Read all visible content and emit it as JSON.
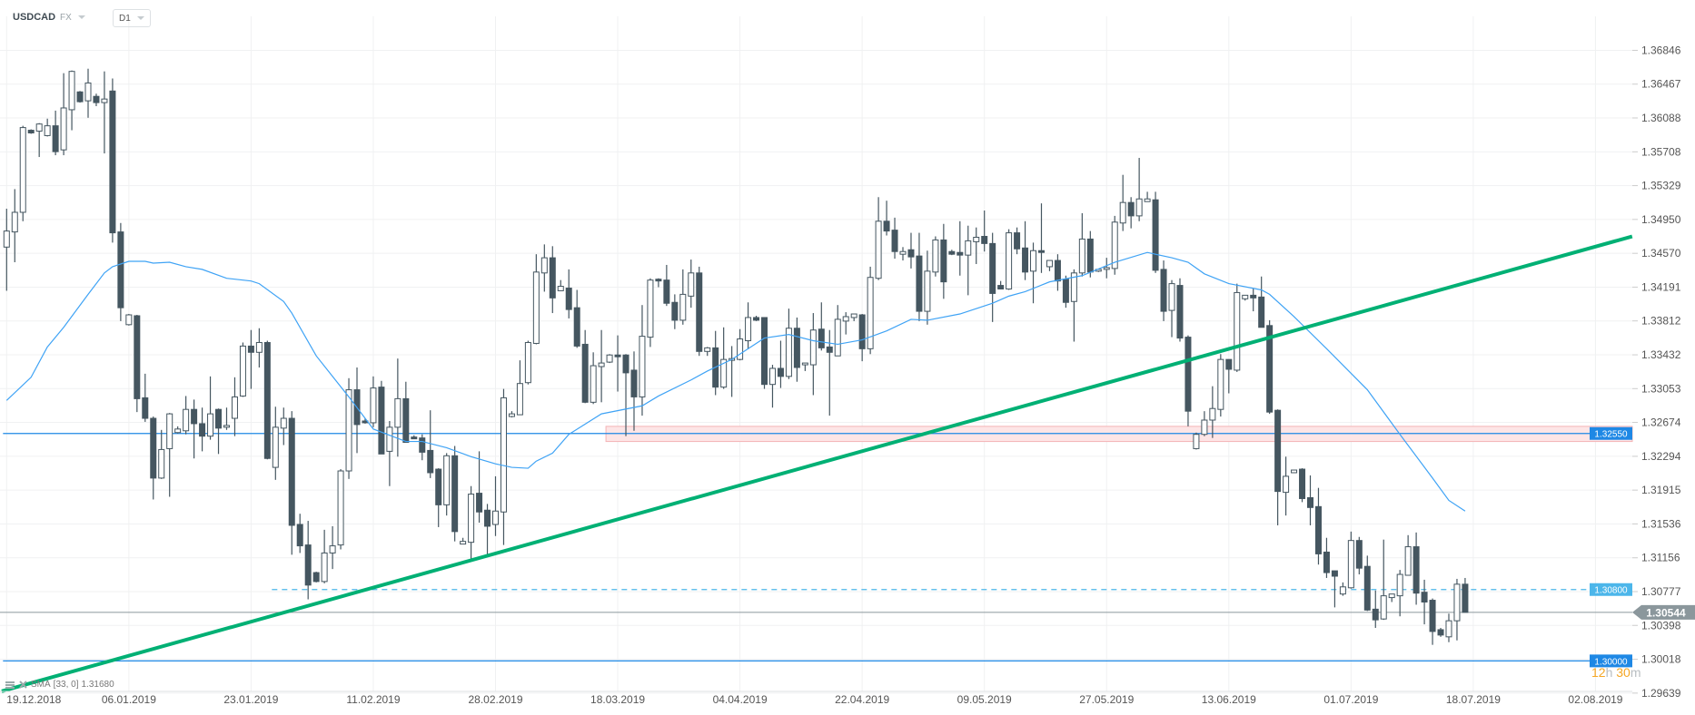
{
  "header": {
    "symbol": "USDCAD",
    "market": "FX",
    "timeframe": "D1"
  },
  "legend": {
    "indicator": "SMA",
    "params": "[33,  0]",
    "value": "1.31680"
  },
  "timer": {
    "hours": "12",
    "h": "h",
    "minutes": "30",
    "m": "m"
  },
  "colors": {
    "bull_fill": "#ffffff",
    "candle": "#455660",
    "sma": "#3fa3f5",
    "trendline": "#00b074",
    "level": "#1e88e5",
    "level_dashed": "#4cb6ea",
    "zone_fill": "#fde5e6",
    "zone_stroke": "#f4b4b6",
    "current": "#8b979c",
    "timer": "#f5a623"
  },
  "chart_data": {
    "type": "candlestick",
    "title": "",
    "ylim": [
      1.29639,
      1.36846
    ],
    "grid": true,
    "y_ticks": [
      "1.36846",
      "1.36467",
      "1.36088",
      "1.35708",
      "1.35329",
      "1.34950",
      "1.34570",
      "1.34191",
      "1.33812",
      "1.33432",
      "1.33053",
      "1.32674",
      "1.32294",
      "1.31915",
      "1.31536",
      "1.31156",
      "1.30777",
      "1.30398",
      "1.30018",
      "1.29639"
    ],
    "x_ticks": [
      "19.12.2018",
      "06.01.2019",
      "23.01.2019",
      "11.02.2019",
      "28.02.2019",
      "18.03.2019",
      "04.04.2019",
      "22.04.2019",
      "09.05.2019",
      "27.05.2019",
      "13.06.2019",
      "01.07.2019",
      "18.07.2019",
      "02.08.2019"
    ],
    "x_tick_every_bars": 15,
    "ohlc_fields": [
      "open",
      "high",
      "low",
      "close"
    ],
    "candles": [
      [
        1.3464,
        1.3507,
        1.3415,
        1.3482
      ],
      [
        1.3481,
        1.3529,
        1.3447,
        1.3503
      ],
      [
        1.3503,
        1.36,
        1.3493,
        1.3598
      ],
      [
        1.3595,
        1.3596,
        1.3591,
        1.3592
      ],
      [
        1.3594,
        1.3603,
        1.3565,
        1.3602
      ],
      [
        1.3589,
        1.3608,
        1.3588,
        1.36
      ],
      [
        1.36,
        1.3617,
        1.3567,
        1.3571
      ],
      [
        1.3573,
        1.3659,
        1.3567,
        1.362
      ],
      [
        1.3618,
        1.3662,
        1.3595,
        1.3661
      ],
      [
        1.3638,
        1.3639,
        1.3626,
        1.3627
      ],
      [
        1.3628,
        1.3664,
        1.3609,
        1.3648
      ],
      [
        1.3633,
        1.3636,
        1.3622,
        1.3626
      ],
      [
        1.3626,
        1.3661,
        1.3569,
        1.363
      ],
      [
        1.3639,
        1.3653,
        1.3469,
        1.348
      ],
      [
        1.3481,
        1.3491,
        1.3381,
        1.3396
      ],
      [
        1.3377,
        1.3389,
        1.3376,
        1.3388
      ],
      [
        1.3387,
        1.3388,
        1.3279,
        1.3294
      ],
      [
        1.3295,
        1.3322,
        1.3268,
        1.3272
      ],
      [
        1.3272,
        1.3274,
        1.3181,
        1.3205
      ],
      [
        1.3205,
        1.3259,
        1.3204,
        1.3237
      ],
      [
        1.3238,
        1.3278,
        1.3184,
        1.3277
      ],
      [
        1.3256,
        1.3263,
        1.3255,
        1.326
      ],
      [
        1.3258,
        1.3297,
        1.3254,
        1.3282
      ],
      [
        1.3282,
        1.3293,
        1.3227,
        1.3266
      ],
      [
        1.3266,
        1.3284,
        1.3235,
        1.3252
      ],
      [
        1.3252,
        1.3319,
        1.3248,
        1.3277
      ],
      [
        1.3282,
        1.3283,
        1.3232,
        1.3261
      ],
      [
        1.3262,
        1.3284,
        1.3259,
        1.3264
      ],
      [
        1.3272,
        1.3318,
        1.3252,
        1.3296
      ],
      [
        1.3297,
        1.3357,
        1.3296,
        1.3353
      ],
      [
        1.3353,
        1.3371,
        1.3305,
        1.3346
      ],
      [
        1.3346,
        1.3373,
        1.3329,
        1.3357
      ],
      [
        1.3357,
        1.3359,
        1.3226,
        1.3227
      ],
      [
        1.3217,
        1.3285,
        1.3203,
        1.3262
      ],
      [
        1.3261,
        1.3284,
        1.3242,
        1.3272
      ],
      [
        1.3272,
        1.328,
        1.3119,
        1.3152
      ],
      [
        1.3153,
        1.3165,
        1.3121,
        1.3129
      ],
      [
        1.313,
        1.3157,
        1.3069,
        1.3085
      ],
      [
        1.3099,
        1.31,
        1.3088,
        1.3089
      ],
      [
        1.3089,
        1.3147,
        1.3087,
        1.3121
      ],
      [
        1.3121,
        1.3151,
        1.3103,
        1.3129
      ],
      [
        1.313,
        1.3215,
        1.3125,
        1.3213
      ],
      [
        1.3213,
        1.3317,
        1.3204,
        1.3304
      ],
      [
        1.3304,
        1.3329,
        1.3233,
        1.3265
      ],
      [
        1.3269,
        1.3272,
        1.3266,
        1.3267
      ],
      [
        1.3267,
        1.3319,
        1.3262,
        1.3306
      ],
      [
        1.3307,
        1.3314,
        1.3232,
        1.3232
      ],
      [
        1.3235,
        1.3269,
        1.3196,
        1.3262
      ],
      [
        1.3262,
        1.3339,
        1.3229,
        1.3294
      ],
      [
        1.3294,
        1.3313,
        1.3245,
        1.3245
      ],
      [
        1.3251,
        1.3253,
        1.3249,
        1.3249
      ],
      [
        1.325,
        1.3254,
        1.3225,
        1.3234
      ],
      [
        1.3236,
        1.3281,
        1.3205,
        1.3211
      ],
      [
        1.3215,
        1.3216,
        1.315,
        1.3175
      ],
      [
        1.3175,
        1.3233,
        1.3163,
        1.323
      ],
      [
        1.323,
        1.3241,
        1.3134,
        1.3145
      ],
      [
        1.3131,
        1.3138,
        1.3131,
        1.3134
      ],
      [
        1.3133,
        1.3196,
        1.3113,
        1.3187
      ],
      [
        1.3188,
        1.3235,
        1.3155,
        1.3167
      ],
      [
        1.3169,
        1.3176,
        1.3118,
        1.3151
      ],
      [
        1.3153,
        1.3207,
        1.314,
        1.3168
      ],
      [
        1.3167,
        1.3305,
        1.313,
        1.3295
      ],
      [
        1.3274,
        1.328,
        1.3273,
        1.3277
      ],
      [
        1.3276,
        1.3337,
        1.3276,
        1.3311
      ],
      [
        1.3312,
        1.3359,
        1.331,
        1.3357
      ],
      [
        1.3356,
        1.3456,
        1.3355,
        1.3436
      ],
      [
        1.3435,
        1.3467,
        1.3414,
        1.3452
      ],
      [
        1.3452,
        1.3465,
        1.339,
        1.3407
      ],
      [
        1.3415,
        1.3427,
        1.3415,
        1.342
      ],
      [
        1.3418,
        1.3439,
        1.3384,
        1.3394
      ],
      [
        1.3396,
        1.3416,
        1.3351,
        1.3353
      ],
      [
        1.3355,
        1.3371,
        1.3289,
        1.329
      ],
      [
        1.329,
        1.3346,
        1.3288,
        1.3331
      ],
      [
        1.333,
        1.3371,
        1.329,
        1.3334
      ],
      [
        1.3335,
        1.3344,
        1.3334,
        1.3343
      ],
      [
        1.3343,
        1.3365,
        1.3302,
        1.3341
      ],
      [
        1.3343,
        1.3344,
        1.3252,
        1.3323
      ],
      [
        1.3326,
        1.3347,
        1.3258,
        1.3296
      ],
      [
        1.3296,
        1.3399,
        1.3275,
        1.3364
      ],
      [
        1.3363,
        1.3429,
        1.3352,
        1.3427
      ],
      [
        1.3428,
        1.3429,
        1.3419,
        1.3426
      ],
      [
        1.3427,
        1.3444,
        1.3398,
        1.3401
      ],
      [
        1.3402,
        1.3411,
        1.3372,
        1.3382
      ],
      [
        1.3382,
        1.3439,
        1.3377,
        1.3411
      ],
      [
        1.3409,
        1.345,
        1.3396,
        1.3435
      ],
      [
        1.3435,
        1.3442,
        1.3342,
        1.3347
      ],
      [
        1.3347,
        1.3352,
        1.3342,
        1.3351
      ],
      [
        1.3351,
        1.337,
        1.3298,
        1.3307
      ],
      [
        1.3307,
        1.3374,
        1.3305,
        1.3338
      ],
      [
        1.3337,
        1.3353,
        1.3296,
        1.3339
      ],
      [
        1.3338,
        1.3372,
        1.3337,
        1.3361
      ],
      [
        1.3359,
        1.3402,
        1.335,
        1.3385
      ],
      [
        1.3385,
        1.3387,
        1.3381,
        1.3382
      ],
      [
        1.3385,
        1.3385,
        1.3305,
        1.331
      ],
      [
        1.331,
        1.3332,
        1.3284,
        1.3328
      ],
      [
        1.3328,
        1.3359,
        1.3306,
        1.3319
      ],
      [
        1.3319,
        1.3395,
        1.3316,
        1.3373
      ],
      [
        1.3373,
        1.3385,
        1.3313,
        1.3329
      ],
      [
        1.3332,
        1.3334,
        1.3325,
        1.3334
      ],
      [
        1.3332,
        1.339,
        1.3298,
        1.3371
      ],
      [
        1.3372,
        1.3402,
        1.3348,
        1.3351
      ],
      [
        1.3352,
        1.3371,
        1.3275,
        1.3346
      ],
      [
        1.3342,
        1.3399,
        1.3342,
        1.3383
      ],
      [
        1.3381,
        1.3391,
        1.3366,
        1.3386
      ],
      [
        1.3385,
        1.3389,
        1.3381,
        1.3389
      ],
      [
        1.3388,
        1.3389,
        1.3336,
        1.335
      ],
      [
        1.335,
        1.3442,
        1.3344,
        1.343
      ],
      [
        1.3429,
        1.352,
        1.3427,
        1.3493
      ],
      [
        1.3493,
        1.3516,
        1.3477,
        1.3482
      ],
      [
        1.3483,
        1.3497,
        1.3451,
        1.3459
      ],
      [
        1.3456,
        1.3464,
        1.3449,
        1.3459
      ],
      [
        1.3461,
        1.348,
        1.344,
        1.3453
      ],
      [
        1.3454,
        1.348,
        1.3381,
        1.3392
      ],
      [
        1.3392,
        1.346,
        1.3377,
        1.3437
      ],
      [
        1.3436,
        1.3476,
        1.3431,
        1.3472
      ],
      [
        1.3472,
        1.349,
        1.3406,
        1.3425
      ],
      [
        1.3459,
        1.3461,
        1.3455,
        1.3456
      ],
      [
        1.3458,
        1.3493,
        1.3432,
        1.3455
      ],
      [
        1.3455,
        1.3488,
        1.341,
        1.3471
      ],
      [
        1.347,
        1.3486,
        1.3445,
        1.3475
      ],
      [
        1.3476,
        1.3505,
        1.3459,
        1.3468
      ],
      [
        1.3468,
        1.348,
        1.338,
        1.3412
      ],
      [
        1.3421,
        1.3426,
        1.3417,
        1.3417
      ],
      [
        1.3417,
        1.3484,
        1.3416,
        1.348
      ],
      [
        1.348,
        1.3486,
        1.3456,
        1.3462
      ],
      [
        1.3463,
        1.3493,
        1.3427,
        1.3436
      ],
      [
        1.3437,
        1.3469,
        1.3401,
        1.346
      ],
      [
        1.346,
        1.3513,
        1.3435,
        1.3458
      ],
      [
        1.3442,
        1.3449,
        1.3437,
        1.3449
      ],
      [
        1.3449,
        1.3456,
        1.3415,
        1.3426
      ],
      [
        1.3428,
        1.3432,
        1.3396,
        1.3402
      ],
      [
        1.3403,
        1.3439,
        1.3358,
        1.3435
      ],
      [
        1.3435,
        1.3502,
        1.3431,
        1.3473
      ],
      [
        1.3473,
        1.3482,
        1.343,
        1.3436
      ],
      [
        1.3437,
        1.3439,
        1.3436,
        1.3439
      ],
      [
        1.3439,
        1.3452,
        1.3429,
        1.3441
      ],
      [
        1.344,
        1.3499,
        1.3433,
        1.3492
      ],
      [
        1.3491,
        1.3545,
        1.3482,
        1.3514
      ],
      [
        1.3514,
        1.352,
        1.3485,
        1.3499
      ],
      [
        1.3499,
        1.3564,
        1.3493,
        1.3518
      ],
      [
        1.3515,
        1.3526,
        1.3515,
        1.3518
      ],
      [
        1.3517,
        1.3526,
        1.3435,
        1.3438
      ],
      [
        1.3439,
        1.3449,
        1.3381,
        1.3392
      ],
      [
        1.3393,
        1.3427,
        1.3363,
        1.3423
      ],
      [
        1.3421,
        1.3429,
        1.3358,
        1.3362
      ],
      [
        1.3363,
        1.3365,
        1.3263,
        1.328
      ],
      [
        1.3238,
        1.3256,
        1.3237,
        1.3254
      ],
      [
        1.3254,
        1.328,
        1.3252,
        1.327
      ],
      [
        1.327,
        1.3308,
        1.325,
        1.3283
      ],
      [
        1.3282,
        1.3344,
        1.3274,
        1.3338
      ],
      [
        1.3338,
        1.3338,
        1.33,
        1.3327
      ],
      [
        1.3326,
        1.3423,
        1.3324,
        1.3413
      ],
      [
        1.3406,
        1.341,
        1.3404,
        1.341
      ],
      [
        1.341,
        1.3418,
        1.3392,
        1.3407
      ],
      [
        1.3408,
        1.3431,
        1.3374,
        1.3374
      ],
      [
        1.3376,
        1.3382,
        1.3277,
        1.3279
      ],
      [
        1.3281,
        1.3282,
        1.3152,
        1.319
      ],
      [
        1.3189,
        1.3229,
        1.3163,
        1.3207
      ],
      [
        1.3211,
        1.3214,
        1.3211,
        1.3214
      ],
      [
        1.3215,
        1.3216,
        1.3178,
        1.3182
      ],
      [
        1.3183,
        1.3208,
        1.3152,
        1.3172
      ],
      [
        1.3173,
        1.3194,
        1.3108,
        1.312
      ],
      [
        1.3122,
        1.3138,
        1.3093,
        1.3099
      ],
      [
        1.3101,
        1.3101,
        1.306,
        1.3095
      ],
      [
        1.3075,
        1.3088,
        1.3073,
        1.3083
      ],
      [
        1.3082,
        1.3145,
        1.3081,
        1.3135
      ],
      [
        1.3135,
        1.3139,
        1.3097,
        1.3104
      ],
      [
        1.3106,
        1.3118,
        1.3056,
        1.3057
      ],
      [
        1.3058,
        1.3079,
        1.3037,
        1.3046
      ],
      [
        1.3047,
        1.3136,
        1.3046,
        1.3073
      ],
      [
        1.3071,
        1.3075,
        1.3066,
        1.3075
      ],
      [
        1.3073,
        1.3102,
        1.305,
        1.3097
      ],
      [
        1.3096,
        1.3141,
        1.3096,
        1.3128
      ],
      [
        1.3128,
        1.3144,
        1.3063,
        1.3076
      ],
      [
        1.3077,
        1.3091,
        1.3041,
        1.3066
      ],
      [
        1.3068,
        1.307,
        1.3018,
        1.3033
      ],
      [
        1.3035,
        1.3037,
        1.3027,
        1.3029
      ],
      [
        1.3027,
        1.3053,
        1.3021,
        1.3045
      ],
      [
        1.3045,
        1.3092,
        1.3023,
        1.3086
      ],
      [
        1.3086,
        1.3093,
        1.3055,
        1.30544
      ]
    ],
    "sma": {
      "period": 33,
      "points": [
        [
          0,
          1.3292
        ],
        [
          3,
          1.3318
        ],
        [
          5,
          1.3352
        ],
        [
          7,
          1.3374
        ],
        [
          10,
          1.3411
        ],
        [
          12,
          1.3435
        ],
        [
          13,
          1.3442
        ],
        [
          15,
          1.3448
        ],
        [
          17,
          1.3448
        ],
        [
          18,
          1.3446
        ],
        [
          20,
          1.3447
        ],
        [
          22,
          1.3442
        ],
        [
          24,
          1.3439
        ],
        [
          27,
          1.3429
        ],
        [
          30,
          1.3426
        ],
        [
          31,
          1.3423
        ],
        [
          34,
          1.3403
        ],
        [
          35,
          1.339
        ],
        [
          38,
          1.3342
        ],
        [
          42,
          1.3296
        ],
        [
          45,
          1.326
        ],
        [
          49,
          1.3246
        ],
        [
          51,
          1.3246
        ],
        [
          54,
          1.3239
        ],
        [
          57,
          1.3229
        ],
        [
          60,
          1.3221
        ],
        [
          62,
          1.3217
        ],
        [
          64,
          1.3216
        ],
        [
          65,
          1.3224
        ],
        [
          67,
          1.3233
        ],
        [
          69,
          1.3254
        ],
        [
          73,
          1.3277
        ],
        [
          78,
          1.3286
        ],
        [
          80,
          1.3297
        ],
        [
          84,
          1.3315
        ],
        [
          86,
          1.3325
        ],
        [
          89,
          1.3338
        ],
        [
          93,
          1.3362
        ],
        [
          96,
          1.3366
        ],
        [
          99,
          1.3359
        ],
        [
          102,
          1.3355
        ],
        [
          105,
          1.336
        ],
        [
          108,
          1.337
        ],
        [
          111,
          1.3383
        ],
        [
          113,
          1.3382
        ],
        [
          117,
          1.3389
        ],
        [
          121,
          1.3401
        ],
        [
          123,
          1.3409
        ],
        [
          125,
          1.3414
        ],
        [
          128,
          1.3425
        ],
        [
          132,
          1.3432
        ],
        [
          136,
          1.3447
        ],
        [
          140,
          1.3458
        ],
        [
          143,
          1.3452
        ],
        [
          145,
          1.3447
        ],
        [
          147,
          1.3434
        ],
        [
          150,
          1.3423
        ],
        [
          154,
          1.3416
        ],
        [
          155,
          1.3411
        ],
        [
          158,
          1.3386
        ],
        [
          162,
          1.335
        ],
        [
          167,
          1.3304
        ],
        [
          171,
          1.3254
        ],
        [
          175,
          1.3205
        ],
        [
          177,
          1.318
        ],
        [
          179,
          1.3168
        ]
      ]
    },
    "trendline": [
      [
        -0.6,
        1.2966
      ],
      [
        199.5,
        1.3476
      ]
    ],
    "zone": {
      "from_bar": 74,
      "low": 1.3246,
      "high": 1.3263
    },
    "levels": [
      {
        "label": "1.32550",
        "value": 1.3255,
        "style": "solid",
        "from_bar": 0
      },
      {
        "label": "1.30800",
        "value": 1.308,
        "style": "dashed",
        "from_bar": 33
      },
      {
        "label": "1.30000",
        "value": 1.3,
        "style": "solid",
        "from_bar": 0
      }
    ],
    "current_price": {
      "label": "1.30544",
      "value": 1.30544
    }
  }
}
